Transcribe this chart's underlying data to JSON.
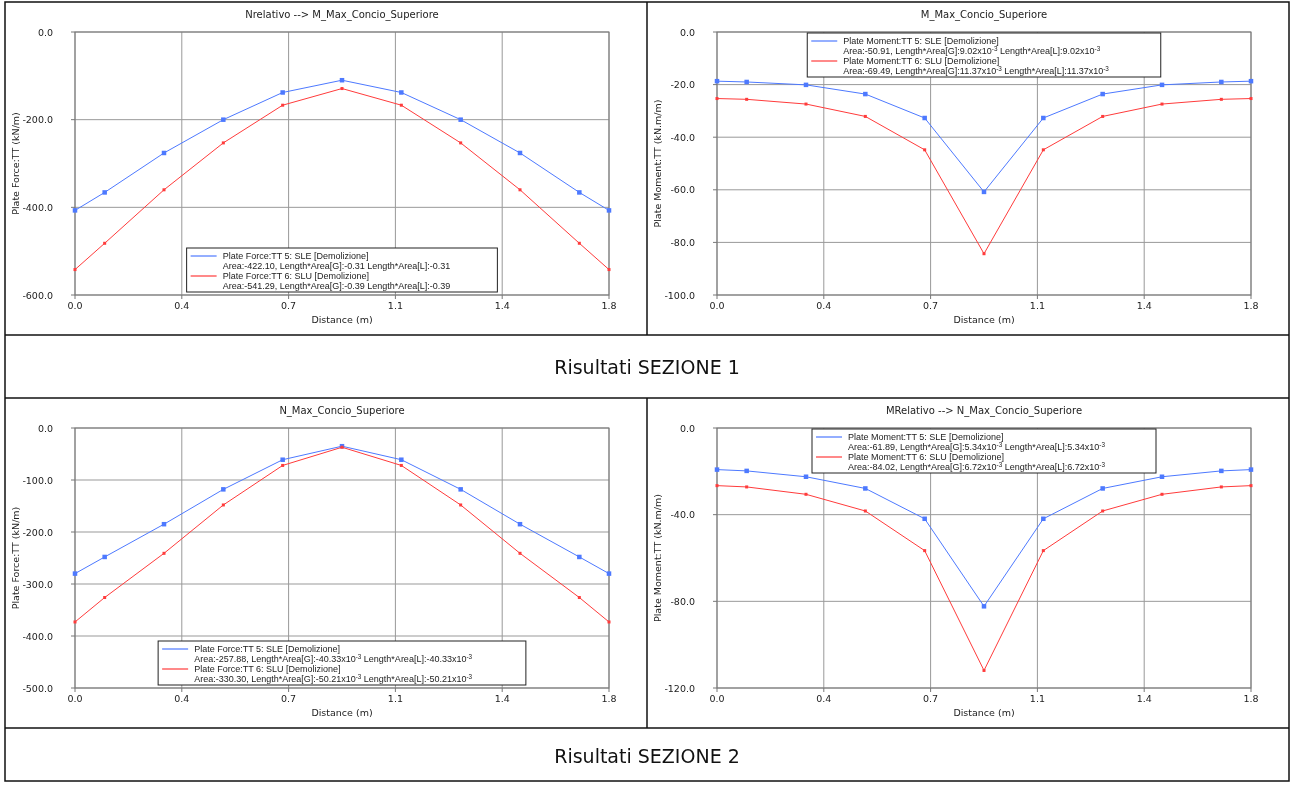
{
  "chart_data": [
    {
      "type": "line",
      "title": "Nrelativo --> M_Max_Concio_Superiore",
      "xlabel": "Distance (m)",
      "ylabel": "Plate Force:TT (kN/m)",
      "x": [
        0,
        0.1,
        0.3,
        0.5,
        0.7,
        0.9,
        1.1,
        1.3,
        1.5,
        1.7,
        1.8
      ],
      "series": [
        {
          "name": "Plate Force:TT  5: SLE [Demolizione]\nArea:-422.10,  Length*Area[G]:-0.31  Length*Area[L]:-0.31",
          "color": "#4d79ff",
          "values": [
            -407,
            -366,
            -276,
            -200,
            -138,
            -110,
            -138,
            -200,
            -276,
            -366,
            -407
          ]
        },
        {
          "name": "Plate Force:TT  6: SLU [Demolizione]\nArea:-541.29,  Length*Area[G]:-0.39  Length*Area[L]:-0.39",
          "color": "#ff3b3b",
          "values": [
            -542,
            -482,
            -360,
            -253,
            -167,
            -129,
            -167,
            -253,
            -360,
            -482,
            -542
          ]
        }
      ],
      "xlim": [
        0,
        1.8
      ],
      "xticks": [
        {
          "value": 0,
          "label": "0.0"
        },
        {
          "value": 0.36,
          "label": "0.4"
        },
        {
          "value": 0.72,
          "label": "0.7"
        },
        {
          "value": 1.08,
          "label": "1.1"
        },
        {
          "value": 1.44,
          "label": "1.4"
        },
        {
          "value": 1.8,
          "label": "1.8"
        }
      ],
      "ylim": [
        -600,
        0
      ],
      "yticks": [
        {
          "value": 0,
          "label": "0.0"
        },
        {
          "value": -200,
          "label": "-200.0"
        },
        {
          "value": -400,
          "label": "-400.0"
        },
        {
          "value": -600,
          "label": "-600.0"
        }
      ],
      "grid": true,
      "legend": "bottom",
      "marker": "square",
      "annotations": [
        "Risultati SEZIONE 1"
      ]
    },
    {
      "type": "line",
      "title": "M_Max_Concio_Superiore",
      "xlabel": "Distance (m)",
      "ylabel": "Plate Moment:TT (kN.m/m)",
      "x": [
        0,
        0.1,
        0.3,
        0.5,
        0.7,
        0.9,
        1.1,
        1.3,
        1.5,
        1.7,
        1.8
      ],
      "series": [
        {
          "name": "Plate Moment:TT  5: SLE [Demolizione]\nArea:-50.91,  Length*Area[G]:9.02x10$^{-3}$  Length*Area[L]:9.02x10$^{-3}$",
          "color": "#4d79ff",
          "values": [
            -18.7,
            -19.0,
            -20.1,
            -23.6,
            -32.7,
            -60.8,
            -32.7,
            -23.6,
            -20.1,
            -19.0,
            -18.7
          ]
        },
        {
          "name": "Plate Moment:TT  6: SLU [Demolizione]\nArea:-69.49,  Length*Area[G]:11.37x10$^{-3}$  Length*Area[L]:11.37x10$^{-3}$",
          "color": "#ff3b3b",
          "values": [
            -25.3,
            -25.6,
            -27.4,
            -32.1,
            -44.8,
            -84.3,
            -44.8,
            -32.1,
            -27.4,
            -25.6,
            -25.3
          ]
        }
      ],
      "xlim": [
        0,
        1.8
      ],
      "xticks": [
        {
          "value": 0,
          "label": "0.0"
        },
        {
          "value": 0.36,
          "label": "0.4"
        },
        {
          "value": 0.72,
          "label": "0.7"
        },
        {
          "value": 1.08,
          "label": "1.1"
        },
        {
          "value": 1.44,
          "label": "1.4"
        },
        {
          "value": 1.8,
          "label": "1.8"
        }
      ],
      "ylim": [
        -100,
        0
      ],
      "yticks": [
        {
          "value": 0,
          "label": "0.0"
        },
        {
          "value": -20,
          "label": "-20.0"
        },
        {
          "value": -40,
          "label": "-40.0"
        },
        {
          "value": -60,
          "label": "-60.0"
        },
        {
          "value": -80,
          "label": "-80.0"
        },
        {
          "value": -100,
          "label": "-100.0"
        }
      ],
      "grid": true,
      "legend": "top",
      "marker": "square"
    },
    {
      "type": "line",
      "title": "N_Max_Concio_Superiore",
      "xlabel": "Distance (m)",
      "ylabel": "Plate Force:TT (kN/m)",
      "x": [
        0,
        0.1,
        0.3,
        0.5,
        0.7,
        0.9,
        1.1,
        1.3,
        1.5,
        1.7,
        1.8
      ],
      "series": [
        {
          "name": "Plate Force:TT  5: SLE [Demolizione]\nArea:-257.88,  Length*Area[G]:-40.33x10$^{-3}$  Length*Area[L]:-40.33x10$^{-3}$",
          "color": "#4d79ff",
          "values": [
            -280,
            -248,
            -185,
            -118,
            -61,
            -35,
            -61,
            -118,
            -185,
            -248,
            -280
          ]
        },
        {
          "name": "Plate Force:TT  6: SLU [Demolizione]\nArea:-330.30,  Length*Area[G]:-50.21x10$^{-3}$  Length*Area[L]:-50.21x10$^{-3}$",
          "color": "#ff3b3b",
          "values": [
            -373,
            -326,
            -241,
            -148,
            -72,
            -37,
            -72,
            -148,
            -241,
            -326,
            -373
          ]
        }
      ],
      "xlim": [
        0,
        1.8
      ],
      "xticks": [
        {
          "value": 0,
          "label": "0.0"
        },
        {
          "value": 0.36,
          "label": "0.4"
        },
        {
          "value": 0.72,
          "label": "0.7"
        },
        {
          "value": 1.08,
          "label": "1.1"
        },
        {
          "value": 1.44,
          "label": "1.4"
        },
        {
          "value": 1.8,
          "label": "1.8"
        }
      ],
      "ylim": [
        -500,
        0
      ],
      "yticks": [
        {
          "value": 0,
          "label": "0.0"
        },
        {
          "value": -100,
          "label": "-100.0"
        },
        {
          "value": -200,
          "label": "-200.0"
        },
        {
          "value": -300,
          "label": "-300.0"
        },
        {
          "value": -400,
          "label": "-400.0"
        },
        {
          "value": -500,
          "label": "-500.0"
        }
      ],
      "grid": true,
      "legend": "bottom",
      "marker": "square",
      "annotations": [
        "Risultati SEZIONE 2"
      ]
    },
    {
      "type": "line",
      "title": "MRelativo --> N_Max_Concio_Superiore",
      "xlabel": "Distance (m)",
      "ylabel": "Plate Moment:TT (kN.m/m)",
      "x": [
        0,
        0.1,
        0.3,
        0.5,
        0.7,
        0.9,
        1.1,
        1.3,
        1.5,
        1.7,
        1.8
      ],
      "series": [
        {
          "name": "Plate Moment:TT  5: SLE [Demolizione]\nArea:-61.89,  Length*Area[G]:5.34x10$^{-3}$  Length*Area[L]:5.34x10$^{-3}$",
          "color": "#4d79ff",
          "values": [
            -19.2,
            -19.8,
            -22.5,
            -27.9,
            -41.9,
            -82.3,
            -41.9,
            -27.9,
            -22.5,
            -19.8,
            -19.2
          ]
        },
        {
          "name": "Plate Moment:TT  6: SLU [Demolizione]\nArea:-84.02,  Length*Area[G]:6.72x10$^{-3}$  Length*Area[L]:6.72x10$^{-3}$",
          "color": "#ff3b3b",
          "values": [
            -26.6,
            -27.2,
            -30.6,
            -38.3,
            -56.6,
            -111.9,
            -56.6,
            -38.3,
            -30.6,
            -27.2,
            -26.6
          ]
        }
      ],
      "xlim": [
        0,
        1.8
      ],
      "xticks": [
        {
          "value": 0,
          "label": "0.0"
        },
        {
          "value": 0.36,
          "label": "0.4"
        },
        {
          "value": 0.72,
          "label": "0.7"
        },
        {
          "value": 1.08,
          "label": "1.1"
        },
        {
          "value": 1.44,
          "label": "1.4"
        },
        {
          "value": 1.8,
          "label": "1.8"
        }
      ],
      "ylim": [
        -120,
        0
      ],
      "yticks": [
        {
          "value": 0,
          "label": "0.0"
        },
        {
          "value": -40,
          "label": "-40.0"
        },
        {
          "value": -80,
          "label": "-80.0"
        },
        {
          "value": -120,
          "label": "-120.0"
        }
      ],
      "grid": true,
      "legend": "top",
      "marker": "square"
    }
  ]
}
